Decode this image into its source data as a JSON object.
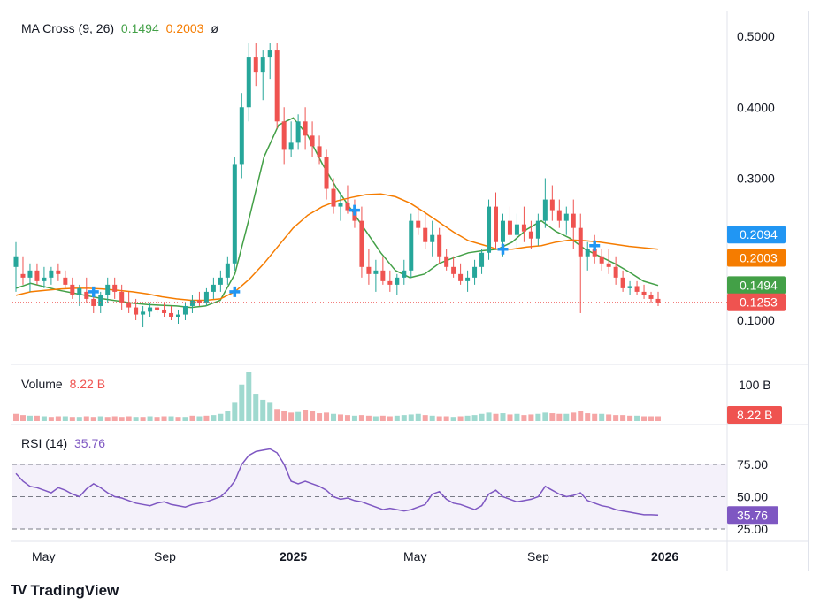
{
  "legend": {
    "ma_label": "MA Cross (9, 26)",
    "ma_fast_value": "0.1494",
    "ma_slow_value": "0.2003",
    "ma_extra": "ø",
    "volume_label": "Volume",
    "volume_value": "8.22 B",
    "rsi_label": "RSI (14)",
    "rsi_value": "35.76"
  },
  "colors": {
    "up": "#26a69a",
    "down": "#ef5350",
    "ma_fast": "#43a047",
    "ma_slow": "#f57c00",
    "cross": "#2196f3",
    "rsi": "#7e57c2",
    "price_line": "#ef5350",
    "last_price_tag": "#ef5350",
    "tag_0_2094": "#2196f3"
  },
  "price_axis": {
    "ticks": [
      "0.5000",
      "0.4000",
      "0.3000",
      "0.1000"
    ]
  },
  "price_tags": [
    {
      "label": "0.2094",
      "value": 0.2094,
      "color": "#2196f3"
    },
    {
      "label": "0.2003",
      "value": 0.2003,
      "color": "#f57c00"
    },
    {
      "label": "0.1494",
      "value": 0.1494,
      "color": "#43a047"
    },
    {
      "label": "0.1253",
      "value": 0.1253,
      "color": "#ef5350"
    }
  ],
  "volume_axis": {
    "tick": "100 B",
    "tag": "8.22 B"
  },
  "rsi_axis": {
    "ticks": [
      "75.00",
      "50.00",
      "25.00"
    ],
    "tag": "35.76"
  },
  "time_axis": {
    "labels": [
      "May",
      "Sep",
      "2025",
      "May",
      "Sep",
      "2026"
    ]
  },
  "brand": {
    "name": "TradingView",
    "mark": "TV"
  },
  "chart_data": {
    "type": "candlestick",
    "ylim": [
      0.08,
      0.52
    ],
    "series": [
      {
        "name": "MA Cross (9, 26)",
        "values": [
          0.145,
          0.152,
          0.147,
          0.142,
          0.138,
          0.134,
          0.13,
          0.127,
          0.124,
          0.122,
          0.121,
          0.12,
          0.118,
          0.12,
          0.128,
          0.165,
          0.245,
          0.33,
          0.375,
          0.385,
          0.36,
          0.32,
          0.285,
          0.255,
          0.225,
          0.195,
          0.17,
          0.16,
          0.165,
          0.18,
          0.188,
          0.195,
          0.198,
          0.2,
          0.21,
          0.228,
          0.24,
          0.225,
          0.215,
          0.2,
          0.19,
          0.18,
          0.168,
          0.155,
          0.149
        ]
      },
      {
        "name": "",
        "values": [
          0.135,
          0.14,
          0.142,
          0.144,
          0.145,
          0.145,
          0.144,
          0.142,
          0.14,
          0.137,
          0.133,
          0.13,
          0.128,
          0.128,
          0.13,
          0.14,
          0.158,
          0.18,
          0.205,
          0.23,
          0.248,
          0.26,
          0.268,
          0.273,
          0.277,
          0.278,
          0.274,
          0.265,
          0.252,
          0.238,
          0.224,
          0.212,
          0.206,
          0.2,
          0.2,
          0.203,
          0.205,
          0.21,
          0.213,
          0.212,
          0.21,
          0.207,
          0.204,
          0.202,
          0.2
        ]
      }
    ],
    "candles": [
      [
        0.175,
        0.21,
        0.14,
        0.19
      ],
      [
        0.165,
        0.19,
        0.15,
        0.16
      ],
      [
        0.16,
        0.18,
        0.14,
        0.17
      ],
      [
        0.17,
        0.18,
        0.15,
        0.155
      ],
      [
        0.155,
        0.175,
        0.145,
        0.16
      ],
      [
        0.16,
        0.175,
        0.15,
        0.17
      ],
      [
        0.17,
        0.18,
        0.155,
        0.165
      ],
      [
        0.16,
        0.17,
        0.145,
        0.15
      ],
      [
        0.15,
        0.16,
        0.13,
        0.135
      ],
      [
        0.135,
        0.15,
        0.12,
        0.145
      ],
      [
        0.14,
        0.16,
        0.125,
        0.13
      ],
      [
        0.13,
        0.14,
        0.11,
        0.12
      ],
      [
        0.12,
        0.14,
        0.11,
        0.135
      ],
      [
        0.135,
        0.16,
        0.125,
        0.15
      ],
      [
        0.15,
        0.16,
        0.13,
        0.14
      ],
      [
        0.14,
        0.15,
        0.115,
        0.125
      ],
      [
        0.125,
        0.14,
        0.11,
        0.118
      ],
      [
        0.118,
        0.13,
        0.1,
        0.108
      ],
      [
        0.108,
        0.12,
        0.09,
        0.112
      ],
      [
        0.112,
        0.125,
        0.105,
        0.118
      ],
      [
        0.118,
        0.13,
        0.11,
        0.115
      ],
      [
        0.115,
        0.125,
        0.105,
        0.11
      ],
      [
        0.11,
        0.12,
        0.1,
        0.105
      ],
      [
        0.105,
        0.115,
        0.095,
        0.108
      ],
      [
        0.108,
        0.125,
        0.1,
        0.12
      ],
      [
        0.12,
        0.135,
        0.11,
        0.128
      ],
      [
        0.128,
        0.14,
        0.12,
        0.125
      ],
      [
        0.125,
        0.145,
        0.12,
        0.14
      ],
      [
        0.14,
        0.16,
        0.13,
        0.15
      ],
      [
        0.15,
        0.17,
        0.14,
        0.16
      ],
      [
        0.16,
        0.19,
        0.15,
        0.18
      ],
      [
        0.18,
        0.33,
        0.17,
        0.32
      ],
      [
        0.32,
        0.42,
        0.3,
        0.4
      ],
      [
        0.4,
        0.49,
        0.38,
        0.47
      ],
      [
        0.47,
        0.49,
        0.43,
        0.45
      ],
      [
        0.45,
        0.48,
        0.41,
        0.47
      ],
      [
        0.47,
        0.49,
        0.44,
        0.48
      ],
      [
        0.48,
        0.49,
        0.37,
        0.38
      ],
      [
        0.38,
        0.4,
        0.32,
        0.34
      ],
      [
        0.34,
        0.38,
        0.33,
        0.35
      ],
      [
        0.35,
        0.39,
        0.34,
        0.38
      ],
      [
        0.38,
        0.4,
        0.34,
        0.36
      ],
      [
        0.36,
        0.38,
        0.33,
        0.345
      ],
      [
        0.345,
        0.36,
        0.32,
        0.33
      ],
      [
        0.33,
        0.34,
        0.27,
        0.285
      ],
      [
        0.285,
        0.3,
        0.25,
        0.26
      ],
      [
        0.26,
        0.28,
        0.24,
        0.265
      ],
      [
        0.265,
        0.29,
        0.25,
        0.255
      ],
      [
        0.255,
        0.27,
        0.23,
        0.24
      ],
      [
        0.24,
        0.26,
        0.16,
        0.175
      ],
      [
        0.175,
        0.2,
        0.15,
        0.165
      ],
      [
        0.165,
        0.185,
        0.14,
        0.17
      ],
      [
        0.17,
        0.19,
        0.15,
        0.155
      ],
      [
        0.155,
        0.17,
        0.14,
        0.15
      ],
      [
        0.15,
        0.165,
        0.135,
        0.16
      ],
      [
        0.16,
        0.185,
        0.15,
        0.17
      ],
      [
        0.17,
        0.25,
        0.16,
        0.24
      ],
      [
        0.24,
        0.26,
        0.22,
        0.23
      ],
      [
        0.23,
        0.25,
        0.2,
        0.21
      ],
      [
        0.21,
        0.24,
        0.19,
        0.22
      ],
      [
        0.22,
        0.23,
        0.18,
        0.19
      ],
      [
        0.19,
        0.2,
        0.17,
        0.175
      ],
      [
        0.175,
        0.19,
        0.16,
        0.165
      ],
      [
        0.165,
        0.18,
        0.15,
        0.155
      ],
      [
        0.155,
        0.17,
        0.14,
        0.16
      ],
      [
        0.16,
        0.185,
        0.15,
        0.175
      ],
      [
        0.175,
        0.2,
        0.165,
        0.195
      ],
      [
        0.195,
        0.27,
        0.185,
        0.26
      ],
      [
        0.26,
        0.28,
        0.2,
        0.21
      ],
      [
        0.21,
        0.25,
        0.19,
        0.24
      ],
      [
        0.24,
        0.26,
        0.21,
        0.22
      ],
      [
        0.22,
        0.25,
        0.2,
        0.235
      ],
      [
        0.235,
        0.26,
        0.21,
        0.225
      ],
      [
        0.225,
        0.24,
        0.2,
        0.215
      ],
      [
        0.215,
        0.25,
        0.205,
        0.24
      ],
      [
        0.24,
        0.3,
        0.23,
        0.27
      ],
      [
        0.27,
        0.29,
        0.24,
        0.255
      ],
      [
        0.255,
        0.27,
        0.23,
        0.24
      ],
      [
        0.24,
        0.26,
        0.22,
        0.25
      ],
      [
        0.25,
        0.27,
        0.2,
        0.23
      ],
      [
        0.23,
        0.25,
        0.11,
        0.19
      ],
      [
        0.19,
        0.21,
        0.17,
        0.2
      ],
      [
        0.2,
        0.22,
        0.18,
        0.19
      ],
      [
        0.19,
        0.2,
        0.17,
        0.18
      ],
      [
        0.18,
        0.2,
        0.165,
        0.175
      ],
      [
        0.175,
        0.19,
        0.15,
        0.16
      ],
      [
        0.16,
        0.17,
        0.14,
        0.145
      ],
      [
        0.145,
        0.155,
        0.135,
        0.148
      ],
      [
        0.148,
        0.155,
        0.135,
        0.14
      ],
      [
        0.14,
        0.15,
        0.13,
        0.135
      ],
      [
        0.135,
        0.14,
        0.125,
        0.13
      ],
      [
        0.13,
        0.14,
        0.12,
        0.125
      ]
    ],
    "crosses": [
      {
        "index": 11,
        "value": 0.14
      },
      {
        "index": 31,
        "value": 0.14
      },
      {
        "index": 48,
        "value": 0.255
      },
      {
        "index": 69,
        "value": 0.2
      },
      {
        "index": 82,
        "value": 0.205
      }
    ],
    "volume": [
      [
        12,
        0
      ],
      [
        10,
        0
      ],
      [
        9,
        1
      ],
      [
        9,
        0
      ],
      [
        8,
        1
      ],
      [
        7,
        0
      ],
      [
        8,
        0
      ],
      [
        8,
        1
      ],
      [
        7,
        0
      ],
      [
        7,
        1
      ],
      [
        8,
        0
      ],
      [
        7,
        0
      ],
      [
        8,
        1
      ],
      [
        7,
        0
      ],
      [
        8,
        0
      ],
      [
        7,
        0
      ],
      [
        8,
        0
      ],
      [
        7,
        1
      ],
      [
        7,
        0
      ],
      [
        8,
        1
      ],
      [
        7,
        0
      ],
      [
        8,
        0
      ],
      [
        8,
        1
      ],
      [
        7,
        0
      ],
      [
        7,
        1
      ],
      [
        9,
        0
      ],
      [
        8,
        1
      ],
      [
        9,
        0
      ],
      [
        10,
        1
      ],
      [
        12,
        1
      ],
      [
        16,
        1
      ],
      [
        30,
        1
      ],
      [
        60,
        1
      ],
      [
        80,
        1
      ],
      [
        45,
        1
      ],
      [
        35,
        1
      ],
      [
        30,
        1
      ],
      [
        20,
        0
      ],
      [
        16,
        0
      ],
      [
        14,
        0
      ],
      [
        15,
        1
      ],
      [
        18,
        0
      ],
      [
        16,
        0
      ],
      [
        13,
        0
      ],
      [
        14,
        0
      ],
      [
        12,
        1
      ],
      [
        11,
        0
      ],
      [
        10,
        0
      ],
      [
        9,
        1
      ],
      [
        10,
        0
      ],
      [
        9,
        0
      ],
      [
        8,
        1
      ],
      [
        9,
        0
      ],
      [
        8,
        0
      ],
      [
        9,
        1
      ],
      [
        10,
        1
      ],
      [
        11,
        1
      ],
      [
        12,
        1
      ],
      [
        10,
        0
      ],
      [
        9,
        1
      ],
      [
        8,
        0
      ],
      [
        8,
        0
      ],
      [
        7,
        1
      ],
      [
        8,
        0
      ],
      [
        9,
        1
      ],
      [
        10,
        1
      ],
      [
        12,
        1
      ],
      [
        14,
        1
      ],
      [
        12,
        0
      ],
      [
        13,
        1
      ],
      [
        11,
        0
      ],
      [
        12,
        1
      ],
      [
        10,
        0
      ],
      [
        11,
        0
      ],
      [
        12,
        1
      ],
      [
        14,
        1
      ],
      [
        13,
        0
      ],
      [
        12,
        0
      ],
      [
        12,
        1
      ],
      [
        14,
        0
      ],
      [
        16,
        0
      ],
      [
        13,
        0
      ],
      [
        12,
        0
      ],
      [
        12,
        1
      ],
      [
        11,
        0
      ],
      [
        10,
        0
      ],
      [
        10,
        0
      ],
      [
        9,
        0
      ],
      [
        9,
        1
      ],
      [
        8,
        0
      ],
      [
        8,
        0
      ],
      [
        8,
        0
      ]
    ],
    "rsi": [
      68,
      62,
      58,
      57,
      55,
      53,
      57,
      55,
      52,
      50,
      56,
      60,
      57,
      53,
      50,
      49,
      47,
      45,
      44,
      43,
      45,
      46,
      44,
      43,
      42,
      44,
      45,
      46,
      48,
      50,
      55,
      62,
      75,
      82,
      85,
      86,
      87,
      84,
      75,
      62,
      60,
      62,
      60,
      58,
      55,
      50,
      48,
      49,
      47,
      46,
      44,
      42,
      40,
      41,
      40,
      39,
      40,
      42,
      44,
      52,
      54,
      48,
      45,
      44,
      42,
      40,
      43,
      52,
      55,
      50,
      48,
      46,
      47,
      48,
      50,
      58,
      55,
      52,
      50,
      51,
      53,
      47,
      45,
      43,
      42,
      40,
      39,
      38,
      37,
      36,
      36,
      35.76
    ]
  }
}
